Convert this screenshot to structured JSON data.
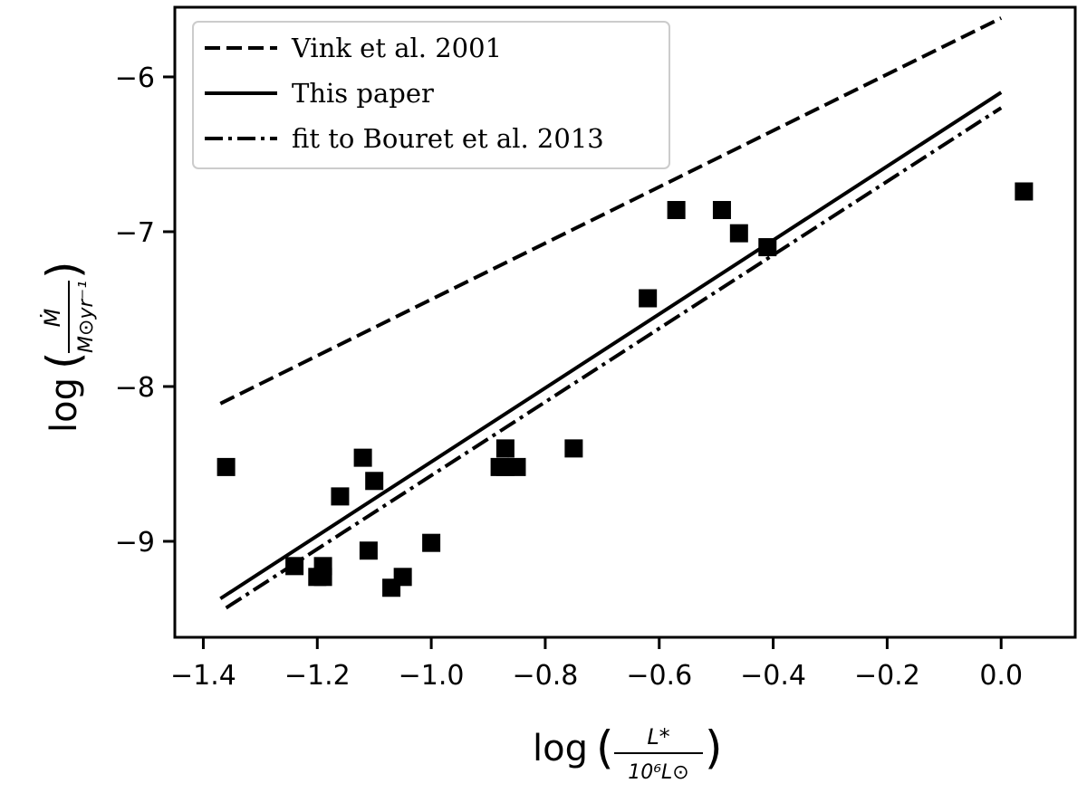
{
  "chart_data": {
    "type": "scatter",
    "title": "",
    "xlabel": {
      "prefix": "log",
      "numerator": "L*",
      "denominator": "10⁶L⊙"
    },
    "ylabel": {
      "prefix": "log",
      "numerator": "Ṁ",
      "denominator": "M⊙yr⁻¹"
    },
    "xlim": [
      -1.45,
      0.13
    ],
    "ylim": [
      -9.62,
      -5.55
    ],
    "x_ticks": [
      -1.4,
      -1.2,
      -1.0,
      -0.8,
      -0.6,
      -0.4,
      -0.2,
      0.0
    ],
    "x_tick_labels": [
      "−1.4",
      "−1.2",
      "−1.0",
      "−0.8",
      "−0.6",
      "−0.4",
      "−0.2",
      "0.0"
    ],
    "y_ticks": [
      -9,
      -8,
      -7,
      -6
    ],
    "y_tick_labels": [
      "−9",
      "−8",
      "−7",
      "−6"
    ],
    "grid": false,
    "legend_position": "top-left",
    "lines": [
      {
        "name": "Vink et al. 2001",
        "style": "dashed",
        "x": [
          -1.37,
          0.0
        ],
        "y": [
          -8.11,
          -5.62
        ]
      },
      {
        "name": "This paper",
        "style": "solid",
        "x": [
          -1.37,
          0.0
        ],
        "y": [
          -9.37,
          -6.1
        ]
      },
      {
        "name": "fit to Bouret et al. 2013",
        "style": "dashdot",
        "x": [
          -1.36,
          0.0
        ],
        "y": [
          -9.43,
          -6.2
        ]
      }
    ],
    "points": {
      "marker": "square",
      "x": [
        -1.36,
        -1.24,
        -1.2,
        -1.19,
        -1.19,
        -1.16,
        -1.12,
        -1.11,
        -1.1,
        -1.07,
        -1.05,
        -1.0,
        -0.88,
        -0.87,
        -0.87,
        -0.85,
        -0.75,
        -0.62,
        -0.57,
        -0.49,
        -0.46,
        -0.41,
        0.04
      ],
      "y": [
        -8.52,
        -9.16,
        -9.23,
        -9.16,
        -9.23,
        -8.71,
        -8.46,
        -9.06,
        -8.61,
        -9.3,
        -9.23,
        -9.01,
        -8.52,
        -8.4,
        -8.52,
        -8.52,
        -8.4,
        -7.43,
        -6.86,
        -6.86,
        -7.01,
        -7.1,
        -6.74
      ]
    }
  }
}
